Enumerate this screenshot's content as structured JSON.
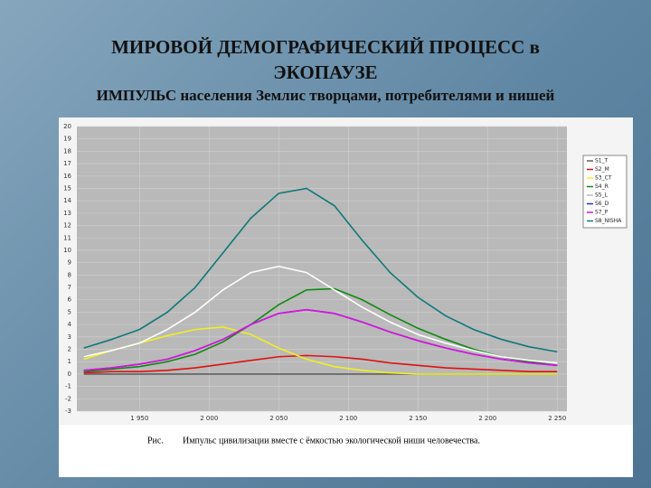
{
  "chart_data": {
    "type": "line",
    "title": "МИРОВОЙ ДЕМОГРАФИЧЕСКИЙ ПРОЦЕСС в ЭКОПАУЗЕ",
    "subtitle": "ИМПУЛЬС населения Землис творцами, потребителями и нишей",
    "caption_label": "Рис.",
    "caption": "Импульс цивилизации вместе с ёмкостью экологической ниши человечества.",
    "x": [
      1910,
      1930,
      1950,
      1970,
      1990,
      2010,
      2030,
      2050,
      2070,
      2090,
      2110,
      2130,
      2150,
      2170,
      2190,
      2210,
      2230,
      2250
    ],
    "xlim": [
      1905,
      2257
    ],
    "xticks": [
      {
        "value": 1950,
        "label": "1 950"
      },
      {
        "value": 2000,
        "label": "2 000"
      },
      {
        "value": 2050,
        "label": "2 050"
      },
      {
        "value": 2100,
        "label": "2 100"
      },
      {
        "value": 2150,
        "label": "2 150"
      },
      {
        "value": 2200,
        "label": "2 200"
      },
      {
        "value": 2250,
        "label": "2 250"
      }
    ],
    "ylim": [
      -3,
      20
    ],
    "yticks": [
      -3,
      -2,
      -1,
      0,
      1,
      2,
      3,
      4,
      5,
      6,
      7,
      8,
      9,
      10,
      11,
      12,
      13,
      14,
      15,
      16,
      17,
      18,
      19,
      20
    ],
    "grid": true,
    "legend": "right",
    "series": [
      {
        "name": "S1_T",
        "color": "#606060",
        "values": [
          0,
          0,
          0,
          0,
          0,
          0,
          0,
          0,
          0,
          0,
          0,
          0,
          0,
          0,
          0,
          0,
          0,
          0
        ]
      },
      {
        "name": "S2_M",
        "color": "#e01010",
        "values": [
          0.1,
          0.2,
          0.2,
          0.3,
          0.5,
          0.8,
          1.1,
          1.4,
          1.5,
          1.4,
          1.2,
          0.9,
          0.7,
          0.5,
          0.4,
          0.3,
          0.2,
          0.2
        ]
      },
      {
        "name": "S3_CT",
        "color": "#f0f020",
        "values": [
          1.2,
          1.9,
          2.5,
          3.1,
          3.6,
          3.8,
          3.2,
          2.1,
          1.2,
          0.6,
          0.3,
          0.1,
          0,
          0,
          0,
          0,
          0,
          0
        ]
      },
      {
        "name": "S4_R",
        "color": "#108a10",
        "values": [
          0.2,
          0.4,
          0.6,
          1.0,
          1.6,
          2.6,
          4.0,
          5.6,
          6.8,
          6.9,
          6.0,
          4.8,
          3.7,
          2.8,
          2.0,
          1.4,
          1.0,
          0.7
        ]
      },
      {
        "name": "S5_L",
        "color": "#ffffff",
        "values": [
          1.4,
          1.9,
          2.5,
          3.6,
          5.0,
          6.8,
          8.2,
          8.7,
          8.2,
          6.8,
          5.4,
          4.2,
          3.2,
          2.5,
          1.9,
          1.4,
          1.1,
          0.9
        ]
      },
      {
        "name": "S6_D",
        "color": "#2030c0",
        "values": [
          0.3,
          0.5,
          0.8,
          1.2,
          1.9,
          2.8,
          4.0,
          4.9,
          5.2,
          4.9,
          4.2,
          3.4,
          2.7,
          2.1,
          1.6,
          1.2,
          0.9,
          0.7
        ]
      },
      {
        "name": "S7_P",
        "color": "#e010e0",
        "values": [
          0.3,
          0.5,
          0.8,
          1.2,
          1.9,
          2.8,
          4.0,
          4.9,
          5.2,
          4.9,
          4.2,
          3.4,
          2.7,
          2.1,
          1.6,
          1.2,
          0.9,
          0.7
        ]
      },
      {
        "name": "S8_NISHA",
        "color": "#107878",
        "values": [
          2.1,
          2.8,
          3.6,
          5.0,
          7.0,
          9.8,
          12.6,
          14.6,
          15.0,
          13.6,
          10.8,
          8.2,
          6.2,
          4.7,
          3.6,
          2.8,
          2.2,
          1.8
        ]
      }
    ]
  }
}
